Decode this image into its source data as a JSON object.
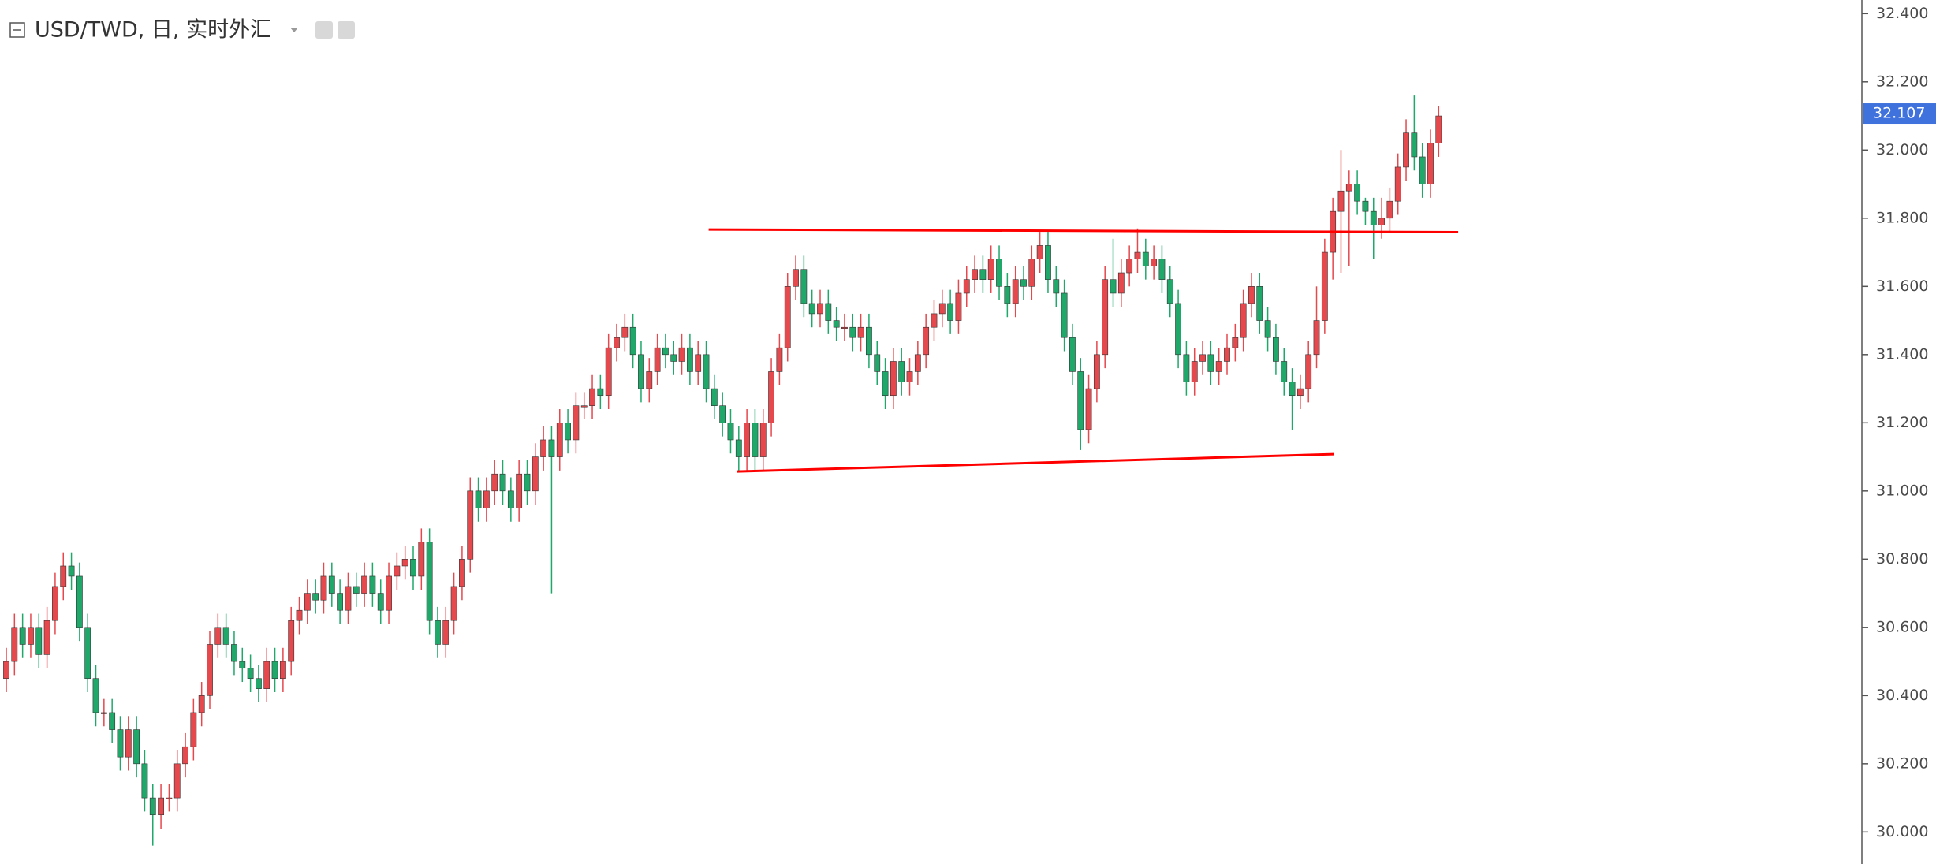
{
  "chart_data": {
    "type": "candlestick",
    "title": "USD/TWD, 日, 实时外汇",
    "up_color": "#e5484d",
    "down_color": "#1fa86a",
    "ylim": [
      29.906,
      32.44
    ],
    "yticks": [
      {
        "value": 32.4,
        "label": "32.400"
      },
      {
        "value": 32.2,
        "label": "32.200"
      },
      {
        "value": 32.0,
        "label": "32.000"
      },
      {
        "value": 31.8,
        "label": "31.800"
      },
      {
        "value": 31.6,
        "label": "31.600"
      },
      {
        "value": 31.4,
        "label": "31.400"
      },
      {
        "value": 31.2,
        "label": "31.200"
      },
      {
        "value": 31.0,
        "label": "31.000"
      },
      {
        "value": 30.8,
        "label": "30.800"
      },
      {
        "value": 30.6,
        "label": "30.600"
      },
      {
        "value": 30.4,
        "label": "30.400"
      },
      {
        "value": 30.2,
        "label": "30.200"
      },
      {
        "value": 30.0,
        "label": "30.000"
      }
    ],
    "last_price": 32.107,
    "last_price_color": "#3f72dc",
    "trend_lines": [
      {
        "x": [
          86.3,
          178.4
        ],
        "y": [
          31.767,
          31.759
        ],
        "color": "#ff0000"
      },
      {
        "x": [
          89.8,
          163.1
        ],
        "y": [
          31.057,
          31.108
        ],
        "color": "#ff0000"
      }
    ],
    "ohlc": [
      [
        30.45,
        30.54,
        30.41,
        30.5
      ],
      [
        30.5,
        30.64,
        30.46,
        30.6
      ],
      [
        30.6,
        30.64,
        30.51,
        30.55
      ],
      [
        30.55,
        30.64,
        30.51,
        30.6
      ],
      [
        30.6,
        30.64,
        30.48,
        30.52
      ],
      [
        30.52,
        30.66,
        30.48,
        30.62
      ],
      [
        30.62,
        30.76,
        30.58,
        30.72
      ],
      [
        30.72,
        30.82,
        30.68,
        30.78
      ],
      [
        30.78,
        30.82,
        30.71,
        30.75
      ],
      [
        30.75,
        30.79,
        30.56,
        30.6
      ],
      [
        30.6,
        30.64,
        30.41,
        30.45
      ],
      [
        30.45,
        30.49,
        30.31,
        30.35
      ],
      [
        30.35,
        30.39,
        30.31,
        30.35
      ],
      [
        30.35,
        30.39,
        30.26,
        30.3
      ],
      [
        30.3,
        30.34,
        30.18,
        30.22
      ],
      [
        30.22,
        30.34,
        30.18,
        30.3
      ],
      [
        30.3,
        30.34,
        30.16,
        30.2
      ],
      [
        30.2,
        30.24,
        30.06,
        30.1
      ],
      [
        30.1,
        30.14,
        29.96,
        30.05
      ],
      [
        30.05,
        30.14,
        30.01,
        30.1
      ],
      [
        30.1,
        30.14,
        30.06,
        30.1
      ],
      [
        30.1,
        30.24,
        30.06,
        30.2
      ],
      [
        30.2,
        30.29,
        30.16,
        30.25
      ],
      [
        30.25,
        30.39,
        30.21,
        30.35
      ],
      [
        30.35,
        30.44,
        30.31,
        30.4
      ],
      [
        30.4,
        30.59,
        30.36,
        30.55
      ],
      [
        30.55,
        30.64,
        30.51,
        30.6
      ],
      [
        30.6,
        30.64,
        30.51,
        30.55
      ],
      [
        30.55,
        30.59,
        30.46,
        30.5
      ],
      [
        30.5,
        30.54,
        30.44,
        30.48
      ],
      [
        30.48,
        30.52,
        30.41,
        30.45
      ],
      [
        30.45,
        30.49,
        30.38,
        30.42
      ],
      [
        30.42,
        30.54,
        30.38,
        30.5
      ],
      [
        30.5,
        30.54,
        30.41,
        30.45
      ],
      [
        30.45,
        30.54,
        30.41,
        30.5
      ],
      [
        30.5,
        30.66,
        30.46,
        30.62
      ],
      [
        30.62,
        30.69,
        30.58,
        30.65
      ],
      [
        30.65,
        30.74,
        30.61,
        30.7
      ],
      [
        30.7,
        30.74,
        30.64,
        30.68
      ],
      [
        30.68,
        30.79,
        30.64,
        30.75
      ],
      [
        30.75,
        30.79,
        30.66,
        30.7
      ],
      [
        30.7,
        30.74,
        30.61,
        30.65
      ],
      [
        30.65,
        30.76,
        30.61,
        30.72
      ],
      [
        30.72,
        30.76,
        30.66,
        30.7
      ],
      [
        30.7,
        30.79,
        30.66,
        30.75
      ],
      [
        30.75,
        30.79,
        30.66,
        30.7
      ],
      [
        30.7,
        30.74,
        30.61,
        30.65
      ],
      [
        30.65,
        30.79,
        30.61,
        30.75
      ],
      [
        30.75,
        30.82,
        30.71,
        30.78
      ],
      [
        30.78,
        30.84,
        30.74,
        30.8
      ],
      [
        30.8,
        30.84,
        30.71,
        30.75
      ],
      [
        30.75,
        30.89,
        30.71,
        30.85
      ],
      [
        30.85,
        30.89,
        30.58,
        30.62
      ],
      [
        30.62,
        30.66,
        30.51,
        30.55
      ],
      [
        30.55,
        30.66,
        30.51,
        30.62
      ],
      [
        30.62,
        30.76,
        30.58,
        30.72
      ],
      [
        30.72,
        30.84,
        30.68,
        30.8
      ],
      [
        30.8,
        31.04,
        30.76,
        31.0
      ],
      [
        31.0,
        31.04,
        30.91,
        30.95
      ],
      [
        30.95,
        31.04,
        30.91,
        31.0
      ],
      [
        31.0,
        31.09,
        30.96,
        31.05
      ],
      [
        31.05,
        31.09,
        30.96,
        31.0
      ],
      [
        31.0,
        31.04,
        30.91,
        30.95
      ],
      [
        30.95,
        31.09,
        30.91,
        31.05
      ],
      [
        31.05,
        31.09,
        30.96,
        31.0
      ],
      [
        31.0,
        31.14,
        30.96,
        31.1
      ],
      [
        31.1,
        31.19,
        31.06,
        31.15
      ],
      [
        31.15,
        31.19,
        30.7,
        31.1
      ],
      [
        31.1,
        31.24,
        31.06,
        31.2
      ],
      [
        31.2,
        31.24,
        31.11,
        31.15
      ],
      [
        31.15,
        31.29,
        31.11,
        31.25
      ],
      [
        31.25,
        31.29,
        31.21,
        31.25
      ],
      [
        31.25,
        31.34,
        31.21,
        31.3
      ],
      [
        31.3,
        31.34,
        31.24,
        31.28
      ],
      [
        31.28,
        31.46,
        31.24,
        31.42
      ],
      [
        31.42,
        31.49,
        31.38,
        31.45
      ],
      [
        31.45,
        31.52,
        31.41,
        31.48
      ],
      [
        31.48,
        31.52,
        31.36,
        31.4
      ],
      [
        31.4,
        31.44,
        31.26,
        31.3
      ],
      [
        31.3,
        31.39,
        31.26,
        31.35
      ],
      [
        31.35,
        31.46,
        31.31,
        31.42
      ],
      [
        31.42,
        31.46,
        31.36,
        31.4
      ],
      [
        31.4,
        31.44,
        31.34,
        31.38
      ],
      [
        31.38,
        31.46,
        31.34,
        31.42
      ],
      [
        31.42,
        31.46,
        31.31,
        31.35
      ],
      [
        31.35,
        31.44,
        31.31,
        31.4
      ],
      [
        31.4,
        31.44,
        31.26,
        31.3
      ],
      [
        31.3,
        31.34,
        31.21,
        31.25
      ],
      [
        31.25,
        31.29,
        31.16,
        31.2
      ],
      [
        31.2,
        31.24,
        31.11,
        31.15
      ],
      [
        31.15,
        31.19,
        31.06,
        31.1
      ],
      [
        31.1,
        31.24,
        31.06,
        31.2
      ],
      [
        31.2,
        31.24,
        31.06,
        31.1
      ],
      [
        31.1,
        31.24,
        31.06,
        31.2
      ],
      [
        31.2,
        31.39,
        31.16,
        31.35
      ],
      [
        31.35,
        31.46,
        31.31,
        31.42
      ],
      [
        31.42,
        31.64,
        31.38,
        31.6
      ],
      [
        31.6,
        31.69,
        31.56,
        31.65
      ],
      [
        31.65,
        31.69,
        31.51,
        31.55
      ],
      [
        31.55,
        31.59,
        31.48,
        31.52
      ],
      [
        31.52,
        31.59,
        31.48,
        31.55
      ],
      [
        31.55,
        31.59,
        31.46,
        31.5
      ],
      [
        31.5,
        31.54,
        31.44,
        31.48
      ],
      [
        31.48,
        31.52,
        31.44,
        31.48
      ],
      [
        31.48,
        31.52,
        31.41,
        31.45
      ],
      [
        31.45,
        31.52,
        31.41,
        31.48
      ],
      [
        31.48,
        31.52,
        31.36,
        31.4
      ],
      [
        31.4,
        31.44,
        31.31,
        31.35
      ],
      [
        31.35,
        31.39,
        31.24,
        31.28
      ],
      [
        31.28,
        31.42,
        31.24,
        31.38
      ],
      [
        31.38,
        31.42,
        31.28,
        31.32
      ],
      [
        31.32,
        31.39,
        31.28,
        31.35
      ],
      [
        31.35,
        31.44,
        31.31,
        31.4
      ],
      [
        31.4,
        31.52,
        31.36,
        31.48
      ],
      [
        31.48,
        31.56,
        31.44,
        31.52
      ],
      [
        31.52,
        31.59,
        31.48,
        31.55
      ],
      [
        31.55,
        31.59,
        31.46,
        31.5
      ],
      [
        31.5,
        31.62,
        31.46,
        31.58
      ],
      [
        31.58,
        31.66,
        31.54,
        31.62
      ],
      [
        31.62,
        31.69,
        31.58,
        31.65
      ],
      [
        31.65,
        31.69,
        31.58,
        31.62
      ],
      [
        31.62,
        31.72,
        31.58,
        31.68
      ],
      [
        31.68,
        31.72,
        31.56,
        31.6
      ],
      [
        31.6,
        31.64,
        31.51,
        31.55
      ],
      [
        31.55,
        31.66,
        31.51,
        31.62
      ],
      [
        31.62,
        31.66,
        31.56,
        31.6
      ],
      [
        31.6,
        31.72,
        31.56,
        31.68
      ],
      [
        31.68,
        31.76,
        31.64,
        31.72
      ],
      [
        31.72,
        31.76,
        31.58,
        31.62
      ],
      [
        31.62,
        31.66,
        31.54,
        31.58
      ],
      [
        31.58,
        31.62,
        31.41,
        31.45
      ],
      [
        31.45,
        31.49,
        31.31,
        31.35
      ],
      [
        31.35,
        31.39,
        31.12,
        31.18
      ],
      [
        31.18,
        31.34,
        31.14,
        31.3
      ],
      [
        31.3,
        31.44,
        31.26,
        31.4
      ],
      [
        31.4,
        31.66,
        31.36,
        31.62
      ],
      [
        31.62,
        31.74,
        31.54,
        31.58
      ],
      [
        31.58,
        31.68,
        31.54,
        31.64
      ],
      [
        31.64,
        31.72,
        31.6,
        31.68
      ],
      [
        31.68,
        31.77,
        31.64,
        31.7
      ],
      [
        31.7,
        31.74,
        31.62,
        31.66
      ],
      [
        31.66,
        31.72,
        31.62,
        31.68
      ],
      [
        31.68,
        31.72,
        31.58,
        31.62
      ],
      [
        31.62,
        31.66,
        31.51,
        31.55
      ],
      [
        31.55,
        31.59,
        31.36,
        31.4
      ],
      [
        31.4,
        31.44,
        31.28,
        31.32
      ],
      [
        31.32,
        31.42,
        31.28,
        31.38
      ],
      [
        31.38,
        31.44,
        31.34,
        31.4
      ],
      [
        31.4,
        31.44,
        31.31,
        31.35
      ],
      [
        31.35,
        31.42,
        31.31,
        31.38
      ],
      [
        31.38,
        31.46,
        31.34,
        31.42
      ],
      [
        31.42,
        31.49,
        31.38,
        31.45
      ],
      [
        31.45,
        31.59,
        31.41,
        31.55
      ],
      [
        31.55,
        31.64,
        31.51,
        31.6
      ],
      [
        31.6,
        31.64,
        31.46,
        31.5
      ],
      [
        31.5,
        31.54,
        31.41,
        31.45
      ],
      [
        31.45,
        31.49,
        31.34,
        31.38
      ],
      [
        31.38,
        31.42,
        31.28,
        31.32
      ],
      [
        31.32,
        31.36,
        31.18,
        31.28
      ],
      [
        31.28,
        31.34,
        31.24,
        31.3
      ],
      [
        31.3,
        31.44,
        31.26,
        31.4
      ],
      [
        31.4,
        31.6,
        31.36,
        31.5
      ],
      [
        31.5,
        31.74,
        31.46,
        31.7
      ],
      [
        31.7,
        31.86,
        31.62,
        31.82
      ],
      [
        31.82,
        32.0,
        31.64,
        31.88
      ],
      [
        31.88,
        31.94,
        31.66,
        31.9
      ],
      [
        31.9,
        31.94,
        31.81,
        31.85
      ],
      [
        31.85,
        31.86,
        31.78,
        31.82
      ],
      [
        31.82,
        31.86,
        31.68,
        31.78
      ],
      [
        31.78,
        31.86,
        31.74,
        31.8
      ],
      [
        31.8,
        31.89,
        31.76,
        31.85
      ],
      [
        31.85,
        31.99,
        31.81,
        31.95
      ],
      [
        31.95,
        32.09,
        31.91,
        32.05
      ],
      [
        32.05,
        32.16,
        31.94,
        31.98
      ],
      [
        31.98,
        32.02,
        31.86,
        31.9
      ],
      [
        31.9,
        32.06,
        31.86,
        32.02
      ],
      [
        32.02,
        32.13,
        31.98,
        32.1
      ]
    ]
  }
}
